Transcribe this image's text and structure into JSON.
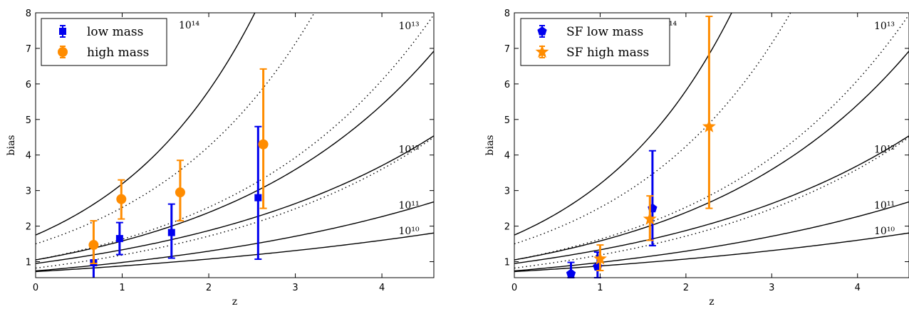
{
  "chart_data": [
    {
      "type": "scatter",
      "xlabel": "z",
      "ylabel": "bias",
      "xlim": [
        0,
        4.6
      ],
      "ylim": [
        0.55,
        8
      ],
      "xticks": [
        "0",
        "1",
        "2",
        "3",
        "4"
      ],
      "yticks": [
        "1",
        "2",
        "3",
        "4",
        "5",
        "6",
        "7",
        "8"
      ],
      "legend_position": "top-left",
      "curves": [
        {
          "label": "10¹⁰",
          "style": "solid",
          "b0": 0.72,
          "k": 0.2
        },
        {
          "label": "10¹¹",
          "style": "solid",
          "b0": 0.74,
          "k": 0.28
        },
        {
          "label": "",
          "style": "dotted",
          "b0": 0.82,
          "k": 0.37
        },
        {
          "label": "10¹²",
          "style": "solid",
          "b0": 0.95,
          "k": 0.34
        },
        {
          "label": "",
          "style": "dotted",
          "b0": 1.05,
          "k": 0.44
        },
        {
          "label": "10¹³",
          "style": "solid",
          "b0": 1.05,
          "k": 0.41
        },
        {
          "label": "",
          "style": "dotted",
          "b0": 1.5,
          "k": 0.52
        },
        {
          "label": "10¹⁴",
          "style": "solid",
          "b0": 1.75,
          "k": 0.6
        }
      ],
      "series": [
        {
          "name": "low mass",
          "color": "#0000ee",
          "marker": "square",
          "points": [
            {
              "x": 0.67,
              "y": 0.97,
              "lo": 0.4,
              "hi": 1.4
            },
            {
              "x": 0.97,
              "y": 1.65,
              "lo": 1.2,
              "hi": 2.1
            },
            {
              "x": 1.57,
              "y": 1.82,
              "lo": 1.1,
              "hi": 2.62
            },
            {
              "x": 2.57,
              "y": 2.8,
              "lo": 1.07,
              "hi": 4.8
            }
          ]
        },
        {
          "name": "high mass",
          "color": "#ff8c00",
          "marker": "circle",
          "points": [
            {
              "x": 0.67,
              "y": 1.47,
              "lo": 0.95,
              "hi": 2.15
            },
            {
              "x": 0.99,
              "y": 2.76,
              "lo": 2.2,
              "hi": 3.3
            },
            {
              "x": 1.67,
              "y": 2.95,
              "lo": 2.15,
              "hi": 3.85
            },
            {
              "x": 2.63,
              "y": 4.3,
              "lo": 2.5,
              "hi": 6.42
            }
          ]
        }
      ]
    },
    {
      "type": "scatter",
      "xlabel": "z",
      "ylabel": "bias",
      "xlim": [
        0,
        4.6
      ],
      "ylim": [
        0.55,
        8
      ],
      "xticks": [
        "0",
        "1",
        "2",
        "3",
        "4"
      ],
      "yticks": [
        "1",
        "2",
        "3",
        "4",
        "5",
        "6",
        "7",
        "8"
      ],
      "legend_position": "top-left",
      "curves": [
        {
          "label": "10¹⁰",
          "style": "solid",
          "b0": 0.72,
          "k": 0.2
        },
        {
          "label": "10¹¹",
          "style": "solid",
          "b0": 0.74,
          "k": 0.28
        },
        {
          "label": "",
          "style": "dotted",
          "b0": 0.82,
          "k": 0.37
        },
        {
          "label": "10¹²",
          "style": "solid",
          "b0": 0.95,
          "k": 0.34
        },
        {
          "label": "",
          "style": "dotted",
          "b0": 1.05,
          "k": 0.44
        },
        {
          "label": "10¹³",
          "style": "solid",
          "b0": 1.05,
          "k": 0.41
        },
        {
          "label": "",
          "style": "dotted",
          "b0": 1.5,
          "k": 0.52
        },
        {
          "label": "10¹⁴",
          "style": "solid",
          "b0": 1.75,
          "k": 0.6
        }
      ],
      "series": [
        {
          "name": "SF low mass",
          "color": "#0000ee",
          "marker": "pentagon",
          "points": [
            {
              "x": 0.66,
              "y": 0.66,
              "lo": 0.55,
              "hi": 0.98
            },
            {
              "x": 0.97,
              "y": 0.86,
              "lo": 0.55,
              "hi": 1.27
            },
            {
              "x": 1.61,
              "y": 2.5,
              "lo": 1.45,
              "hi": 4.12
            }
          ]
        },
        {
          "name": "SF high mass",
          "color": "#ff8c00",
          "marker": "star",
          "points": [
            {
              "x": 1.0,
              "y": 1.08,
              "lo": 0.75,
              "hi": 1.47
            },
            {
              "x": 1.58,
              "y": 2.2,
              "lo": 1.6,
              "hi": 2.85
            },
            {
              "x": 2.27,
              "y": 4.8,
              "lo": 2.5,
              "hi": 7.9
            }
          ]
        }
      ]
    }
  ]
}
